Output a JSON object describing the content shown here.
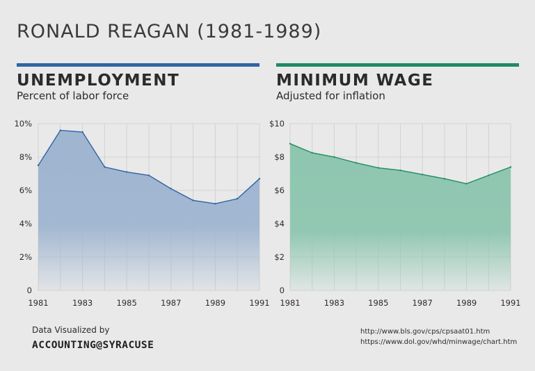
{
  "page": {
    "title": "RONALD REAGAN (1981-1989)",
    "credit_line": "Data Visualized by",
    "credit_brand": "ACCOUNTING@SYRACUSE",
    "sources": [
      "http://www.bls.gov/cps/cpsaat01.htm",
      "https://www.dol.gov/whd/minwage/chart.htm"
    ]
  },
  "chart_data": [
    {
      "type": "area",
      "title": "UNEMPLOYMENT",
      "subtitle": "Percent of labor force",
      "color": "#2f63a5",
      "fill": "#9fb5d0",
      "x": [
        1981,
        1982,
        1983,
        1984,
        1985,
        1986,
        1987,
        1988,
        1989,
        1990,
        1991
      ],
      "values": [
        7.5,
        9.6,
        9.5,
        7.4,
        7.1,
        6.9,
        6.1,
        5.4,
        5.2,
        5.5,
        6.7
      ],
      "ylim": [
        0,
        10
      ],
      "yticks": [
        0,
        2,
        4,
        6,
        8,
        10
      ],
      "ytick_labels": [
        "0",
        "2%",
        "4%",
        "6%",
        "8%",
        "10%"
      ],
      "xticks": [
        1981,
        1983,
        1985,
        1987,
        1989,
        1991
      ],
      "xtick_labels": [
        "1981",
        "1983",
        "1985",
        "1987",
        "1989",
        "1991"
      ],
      "grid": true
    },
    {
      "type": "area",
      "title": "MINIMUM WAGE",
      "subtitle": "Adjusted for inflation",
      "color": "#1f8a64",
      "fill": "#8ec6b0",
      "x": [
        1981,
        1982,
        1983,
        1984,
        1985,
        1986,
        1987,
        1988,
        1989,
        1990,
        1991
      ],
      "values": [
        8.8,
        8.25,
        8.0,
        7.65,
        7.35,
        7.2,
        6.95,
        6.7,
        6.4,
        6.9,
        7.4
      ],
      "ylim": [
        0,
        10
      ],
      "yticks": [
        0,
        2,
        4,
        6,
        8,
        10
      ],
      "ytick_labels": [
        "0",
        "$2",
        "$4",
        "$6",
        "$8",
        "$10"
      ],
      "xticks": [
        1981,
        1983,
        1985,
        1987,
        1989,
        1991
      ],
      "xtick_labels": [
        "1981",
        "1983",
        "1985",
        "1987",
        "1989",
        "1991"
      ],
      "grid": true
    }
  ]
}
